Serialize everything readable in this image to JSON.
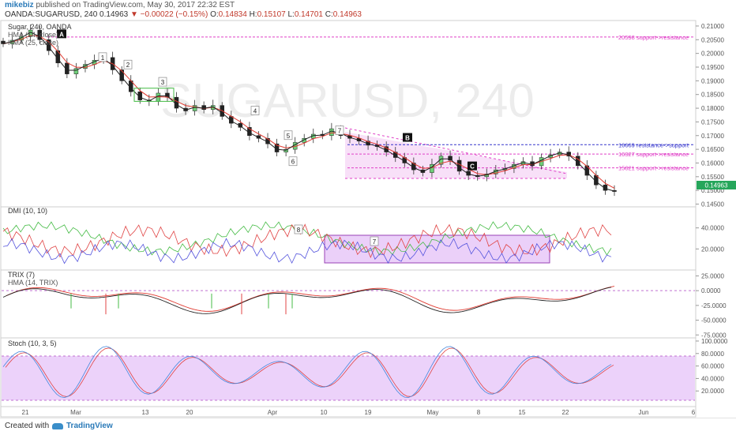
{
  "header": {
    "user": "mikebiz",
    "published": "published on TradingView.com, May 30, 2017 22:32 EST",
    "symbol": "OANDA:SUGARUSD, 240",
    "last": "0.14963",
    "change": "▼ −0.00022 (−0.15%)",
    "o_label": "O:",
    "o": "0.14834",
    "h_label": "H:",
    "h": "0.15107",
    "l_label": "L:",
    "l": "0.14701",
    "c_label": "C:",
    "c": "0.14963"
  },
  "colors": {
    "candle_up": "#3a9a4a",
    "candle_down": "#333333",
    "hma_red": "#e0392f",
    "hma_black": "#222222",
    "pink": "#e040c8",
    "blue_line": "#3333cc",
    "dmi_green": "#44bb44",
    "dmi_red": "#e04444",
    "dmi_blue": "#5555dd",
    "stoch_fill": "#e8c8f8",
    "price_badge": "#26a65b"
  },
  "chart_data": [
    {
      "type": "line",
      "panel": "price",
      "title": "Sugar, 240, OANDA",
      "legend": [
        "HMA (14, close)",
        "HMA (25, close)"
      ],
      "watermark": "SUGARUSD, 240",
      "ylim": [
        0.144,
        0.212
      ],
      "y_ticks": [
        "0.21000",
        "0.20500",
        "0.20000",
        "0.19500",
        "0.19000",
        "0.18500",
        "0.18000",
        "0.17500",
        "0.17000",
        "0.16500",
        "0.16000",
        "0.15500",
        "0.15000",
        "0.14500"
      ],
      "last_price_label": "0.14963",
      "price_series": [
        0.2035,
        0.2048,
        0.2062,
        0.2085,
        0.205,
        0.201,
        0.1965,
        0.1925,
        0.1945,
        0.196,
        0.1975,
        0.1985,
        0.194,
        0.19,
        0.186,
        0.183,
        0.1825,
        0.1855,
        0.184,
        0.18,
        0.179,
        0.181,
        0.1795,
        0.181,
        0.177,
        0.1745,
        0.173,
        0.17,
        0.169,
        0.167,
        0.164,
        0.165,
        0.1675,
        0.169,
        0.1705,
        0.17,
        0.1725,
        0.17,
        0.169,
        0.168,
        0.1665,
        0.166,
        0.164,
        0.162,
        0.16,
        0.1575,
        0.1565,
        0.1595,
        0.1625,
        0.161,
        0.157,
        0.1555,
        0.155,
        0.156,
        0.1575,
        0.158,
        0.1595,
        0.1605,
        0.159,
        0.162,
        0.163,
        0.164,
        0.1625,
        0.159,
        0.1555,
        0.152,
        0.15,
        0.1496
      ],
      "levels": [
        {
          "label": "20598 support->resistance",
          "value": 0.20598,
          "color": "#e040c8"
        },
        {
          "label": "16669 resistance->support",
          "value": 0.16669,
          "color": "#3333cc"
        },
        {
          "label": "16327 support->resistance",
          "value": 0.16327,
          "color": "#e040c8"
        },
        {
          "label": "15821 support->resistance",
          "value": 0.15821,
          "color": "#e040c8"
        }
      ],
      "wave_labels": [
        "1",
        "2",
        "3",
        "4",
        "5",
        "6",
        "7"
      ],
      "box_labels": [
        "A",
        "B",
        "C"
      ]
    },
    {
      "type": "line",
      "panel": "dmi",
      "title": "DMI (10, 10)",
      "y_ticks": [
        "40.0000",
        "20.0000"
      ],
      "annotations": [
        "8",
        "7"
      ]
    },
    {
      "type": "line",
      "panel": "trix",
      "title": "TRIX (7)",
      "legend": [
        "HMA (14, TRIX)"
      ],
      "y_ticks": [
        "25.0000",
        "0.0000",
        "-25.0000",
        "-50.0000",
        "-75.0000"
      ]
    },
    {
      "type": "area",
      "panel": "stoch",
      "title": "Stoch (10, 3, 5)",
      "y_ticks": [
        "100.0000",
        "80.0000",
        "60.0000",
        "40.0000",
        "20.0000"
      ],
      "band": [
        20,
        80
      ]
    }
  ],
  "x_axis": {
    "ticks": [
      "21",
      "Mar",
      "13",
      "20",
      "Apr",
      "10",
      "19",
      "May",
      "8",
      "15",
      "22",
      "Jun",
      "6"
    ]
  },
  "footer": {
    "created": "Created with",
    "brand": "TradingView"
  }
}
